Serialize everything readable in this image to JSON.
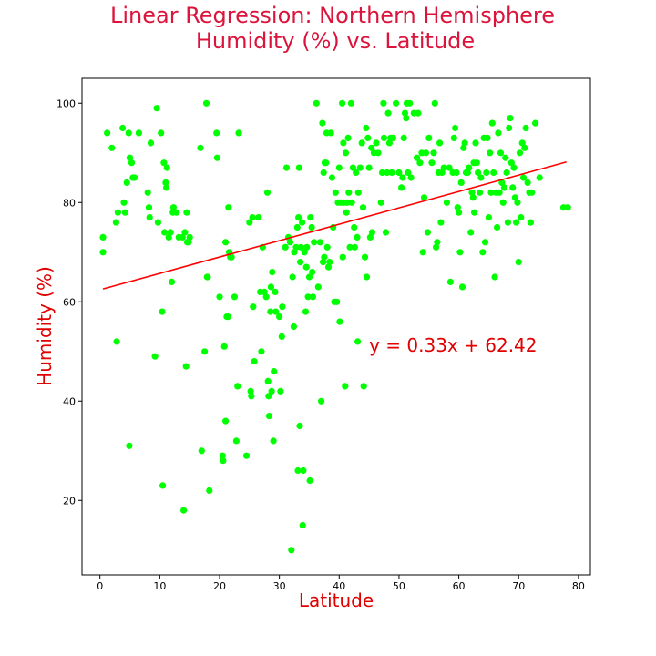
{
  "chart_data": {
    "type": "scatter",
    "title": [
      "Linear Regression: Northern Hemisphere",
      "Humidity (%) vs. Latitude"
    ],
    "xlabel": "Latitude",
    "ylabel": "Humidity (%)",
    "xlim": [
      -3,
      82
    ],
    "ylim": [
      5,
      105
    ],
    "xticks": [
      0,
      10,
      20,
      30,
      40,
      50,
      60,
      70,
      80
    ],
    "yticks": [
      20,
      40,
      60,
      80,
      100
    ],
    "grid": false,
    "point_color": "#00ff00",
    "line_color": "#ff0000",
    "title_color": "#dc143c",
    "label_color": "#e00000",
    "regression": {
      "slope": 0.33,
      "intercept": 62.42,
      "x_range": [
        0.5,
        78
      ],
      "equation": "y = 0.33x + 62.42",
      "equation_anchor": [
        45,
        50
      ]
    },
    "series": [
      {
        "points": [
          [
            0.5,
            73
          ],
          [
            0.5,
            70
          ],
          [
            1.2,
            94
          ],
          [
            2,
            91
          ],
          [
            2.7,
            76
          ],
          [
            2.8,
            52
          ],
          [
            3,
            78
          ],
          [
            3.8,
            95
          ],
          [
            4,
            80
          ],
          [
            4.2,
            78
          ],
          [
            4.5,
            84
          ],
          [
            4.8,
            94
          ],
          [
            4.9,
            31
          ],
          [
            5,
            89
          ],
          [
            5.3,
            88
          ],
          [
            5.5,
            85
          ],
          [
            5.8,
            85
          ],
          [
            6.5,
            94
          ],
          [
            8,
            82
          ],
          [
            8.2,
            79
          ],
          [
            8.3,
            77
          ],
          [
            8.5,
            92
          ],
          [
            9.2,
            49
          ],
          [
            9.5,
            99
          ],
          [
            9.7,
            76
          ],
          [
            10.2,
            94
          ],
          [
            10.4,
            58
          ],
          [
            10.5,
            23
          ],
          [
            10.7,
            88
          ],
          [
            10.8,
            74
          ],
          [
            11,
            84
          ],
          [
            11.1,
            83
          ],
          [
            11.2,
            87
          ],
          [
            11.5,
            73
          ],
          [
            11.8,
            74
          ],
          [
            12,
            64
          ],
          [
            12.2,
            78
          ],
          [
            12.3,
            79
          ],
          [
            12.8,
            78
          ],
          [
            13.2,
            73
          ],
          [
            13.8,
            73
          ],
          [
            14,
            18
          ],
          [
            14.2,
            74
          ],
          [
            14.4,
            47
          ],
          [
            14.5,
            78
          ],
          [
            14.6,
            72
          ],
          [
            14.8,
            72
          ],
          [
            15,
            73
          ],
          [
            16.8,
            91
          ],
          [
            17,
            30
          ],
          [
            17.5,
            50
          ],
          [
            17.8,
            100
          ],
          [
            17.9,
            65
          ],
          [
            18,
            65
          ],
          [
            18.3,
            22
          ],
          [
            19.5,
            94
          ],
          [
            19.6,
            89
          ],
          [
            20,
            61
          ],
          [
            20.5,
            29
          ],
          [
            20.6,
            28
          ],
          [
            20.8,
            51
          ],
          [
            21,
            36
          ],
          [
            21,
            72
          ],
          [
            21.2,
            57
          ],
          [
            21.4,
            57
          ],
          [
            21.5,
            79
          ],
          [
            21.6,
            70
          ],
          [
            21.8,
            69
          ],
          [
            22,
            69
          ],
          [
            22.5,
            61
          ],
          [
            22.8,
            32
          ],
          [
            23,
            43
          ],
          [
            23.2,
            94
          ],
          [
            24.5,
            29
          ],
          [
            25,
            76
          ],
          [
            25.2,
            42
          ],
          [
            25.3,
            41
          ],
          [
            25.5,
            77
          ],
          [
            25.6,
            59
          ],
          [
            25.8,
            48
          ],
          [
            26.5,
            77
          ],
          [
            26.8,
            62
          ],
          [
            27,
            50
          ],
          [
            27.2,
            71
          ],
          [
            27.5,
            62
          ],
          [
            27.8,
            61
          ],
          [
            28,
            82
          ],
          [
            28.1,
            44
          ],
          [
            28.2,
            41
          ],
          [
            28.3,
            37
          ],
          [
            28.5,
            58
          ],
          [
            28.6,
            63
          ],
          [
            28.7,
            42
          ],
          [
            28.8,
            66
          ],
          [
            29,
            32
          ],
          [
            29.1,
            46
          ],
          [
            29.3,
            62
          ],
          [
            29.4,
            58
          ],
          [
            30,
            57
          ],
          [
            30.2,
            42
          ],
          [
            30.4,
            53
          ],
          [
            30.5,
            59
          ],
          [
            31,
            71
          ],
          [
            31.2,
            87
          ],
          [
            31.5,
            73
          ],
          [
            31.8,
            72
          ],
          [
            32,
            10
          ],
          [
            32.2,
            65
          ],
          [
            32.4,
            55
          ],
          [
            32.5,
            70
          ],
          [
            32.8,
            71
          ],
          [
            33,
            75
          ],
          [
            33.1,
            26
          ],
          [
            33.2,
            77
          ],
          [
            33.3,
            87
          ],
          [
            33.4,
            35
          ],
          [
            33.5,
            68
          ],
          [
            33.6,
            71
          ],
          [
            33.8,
            76
          ],
          [
            33.9,
            15
          ],
          [
            34,
            26
          ],
          [
            34.2,
            70
          ],
          [
            34.4,
            58
          ],
          [
            34.5,
            67
          ],
          [
            34.6,
            71
          ],
          [
            34.8,
            61
          ],
          [
            35,
            65
          ],
          [
            35.1,
            24
          ],
          [
            35.2,
            77
          ],
          [
            35.4,
            75
          ],
          [
            35.5,
            66
          ],
          [
            35.6,
            61
          ],
          [
            35.8,
            72
          ],
          [
            36.2,
            100
          ],
          [
            36.5,
            63
          ],
          [
            36.8,
            72
          ],
          [
            37,
            40
          ],
          [
            37.2,
            96
          ],
          [
            37.3,
            68
          ],
          [
            37.4,
            86
          ],
          [
            37.5,
            69
          ],
          [
            37.6,
            88
          ],
          [
            37.8,
            88
          ],
          [
            37.9,
            94
          ],
          [
            38,
            71
          ],
          [
            38.2,
            67
          ],
          [
            38.4,
            68
          ],
          [
            38.6,
            94
          ],
          [
            38.8,
            85
          ],
          [
            39,
            75
          ],
          [
            39.2,
            60
          ],
          [
            39.4,
            82
          ],
          [
            39.6,
            60
          ],
          [
            39.8,
            80
          ],
          [
            40,
            87
          ],
          [
            40.1,
            56
          ],
          [
            40.3,
            80
          ],
          [
            40.5,
            100
          ],
          [
            40.6,
            69
          ],
          [
            40.7,
            92
          ],
          [
            40.8,
            80
          ],
          [
            41,
            43
          ],
          [
            41.1,
            90
          ],
          [
            41.2,
            78
          ],
          [
            41.3,
            80
          ],
          [
            41.5,
            93
          ],
          [
            41.6,
            82
          ],
          [
            41.8,
            71
          ],
          [
            42,
            100
          ],
          [
            42.1,
            80
          ],
          [
            42.3,
            87
          ],
          [
            42.5,
            75
          ],
          [
            42.6,
            71
          ],
          [
            42.8,
            86
          ],
          [
            43,
            73
          ],
          [
            43.1,
            52
          ],
          [
            43.2,
            82
          ],
          [
            43.5,
            87
          ],
          [
            43.8,
            92
          ],
          [
            44,
            79
          ],
          [
            44.1,
            43
          ],
          [
            44.3,
            69
          ],
          [
            44.5,
            95
          ],
          [
            44.6,
            65
          ],
          [
            44.8,
            93
          ],
          [
            45,
            87
          ],
          [
            45.2,
            73
          ],
          [
            45.4,
            91
          ],
          [
            45.5,
            74
          ],
          [
            45.8,
            90
          ],
          [
            46.2,
            92
          ],
          [
            46.5,
            90
          ],
          [
            47,
            80
          ],
          [
            47.2,
            86
          ],
          [
            47.4,
            100
          ],
          [
            47.5,
            93
          ],
          [
            47.8,
            74
          ],
          [
            48,
            86
          ],
          [
            48.2,
            98
          ],
          [
            48.4,
            92
          ],
          [
            48.6,
            93
          ],
          [
            48.8,
            86
          ],
          [
            49,
            93
          ],
          [
            49.5,
            100
          ],
          [
            50,
            86
          ],
          [
            50.4,
            83
          ],
          [
            50.6,
            85
          ],
          [
            50.8,
            93
          ],
          [
            51,
            98
          ],
          [
            51.2,
            97
          ],
          [
            51.3,
            100
          ],
          [
            51.5,
            86
          ],
          [
            51.8,
            100
          ],
          [
            52,
            85
          ],
          [
            52.5,
            98
          ],
          [
            53,
            89
          ],
          [
            53.2,
            98
          ],
          [
            53.5,
            88
          ],
          [
            53.8,
            90
          ],
          [
            54,
            70
          ],
          [
            54.2,
            81
          ],
          [
            54.5,
            90
          ],
          [
            54.8,
            74
          ],
          [
            55,
            93
          ],
          [
            55.5,
            88
          ],
          [
            55.8,
            90
          ],
          [
            56,
            100
          ],
          [
            56.2,
            71
          ],
          [
            56.4,
            72
          ],
          [
            56.6,
            86
          ],
          [
            56.8,
            92
          ],
          [
            57,
            76
          ],
          [
            57.2,
            86
          ],
          [
            57.5,
            87
          ],
          [
            58,
            80
          ],
          [
            58.4,
            87
          ],
          [
            58.6,
            64
          ],
          [
            59,
            86
          ],
          [
            59.2,
            93
          ],
          [
            59.4,
            95
          ],
          [
            59.6,
            86
          ],
          [
            59.8,
            79
          ],
          [
            60,
            78
          ],
          [
            60.2,
            70
          ],
          [
            60.4,
            84
          ],
          [
            60.6,
            63
          ],
          [
            60.8,
            91
          ],
          [
            61,
            92
          ],
          [
            61.2,
            86
          ],
          [
            61.5,
            86
          ],
          [
            61.7,
            87
          ],
          [
            62,
            74
          ],
          [
            62.2,
            82
          ],
          [
            62.4,
            81
          ],
          [
            62.5,
            88
          ],
          [
            62.6,
            78
          ],
          [
            62.8,
            92
          ],
          [
            63,
            88
          ],
          [
            63.2,
            86
          ],
          [
            63.5,
            82
          ],
          [
            63.7,
            85
          ],
          [
            64,
            70
          ],
          [
            64.2,
            93
          ],
          [
            64.4,
            72
          ],
          [
            64.6,
            86
          ],
          [
            64.8,
            93
          ],
          [
            65,
            77
          ],
          [
            65.2,
            90
          ],
          [
            65.4,
            82
          ],
          [
            65.6,
            96
          ],
          [
            65.8,
            86
          ],
          [
            66,
            65
          ],
          [
            66.2,
            82
          ],
          [
            66.4,
            75
          ],
          [
            66.6,
            94
          ],
          [
            66.8,
            82
          ],
          [
            67,
            90
          ],
          [
            67.2,
            84
          ],
          [
            67.4,
            80
          ],
          [
            67.6,
            83
          ],
          [
            67.8,
            89
          ],
          [
            68,
            86
          ],
          [
            68.2,
            76
          ],
          [
            68.4,
            95
          ],
          [
            68.6,
            97
          ],
          [
            68.8,
            88
          ],
          [
            69,
            83
          ],
          [
            69.2,
            87
          ],
          [
            69.4,
            81
          ],
          [
            69.6,
            76
          ],
          [
            69.8,
            80
          ],
          [
            70,
            68
          ],
          [
            70.2,
            90
          ],
          [
            70.4,
            77
          ],
          [
            70.6,
            92
          ],
          [
            70.8,
            85
          ],
          [
            71,
            91
          ],
          [
            71.2,
            95
          ],
          [
            71.5,
            84
          ],
          [
            71.8,
            82
          ],
          [
            72,
            76
          ],
          [
            72.2,
            82
          ],
          [
            72.8,
            96
          ],
          [
            73.5,
            85
          ],
          [
            77.5,
            79
          ],
          [
            78.2,
            79
          ]
        ]
      }
    ]
  }
}
